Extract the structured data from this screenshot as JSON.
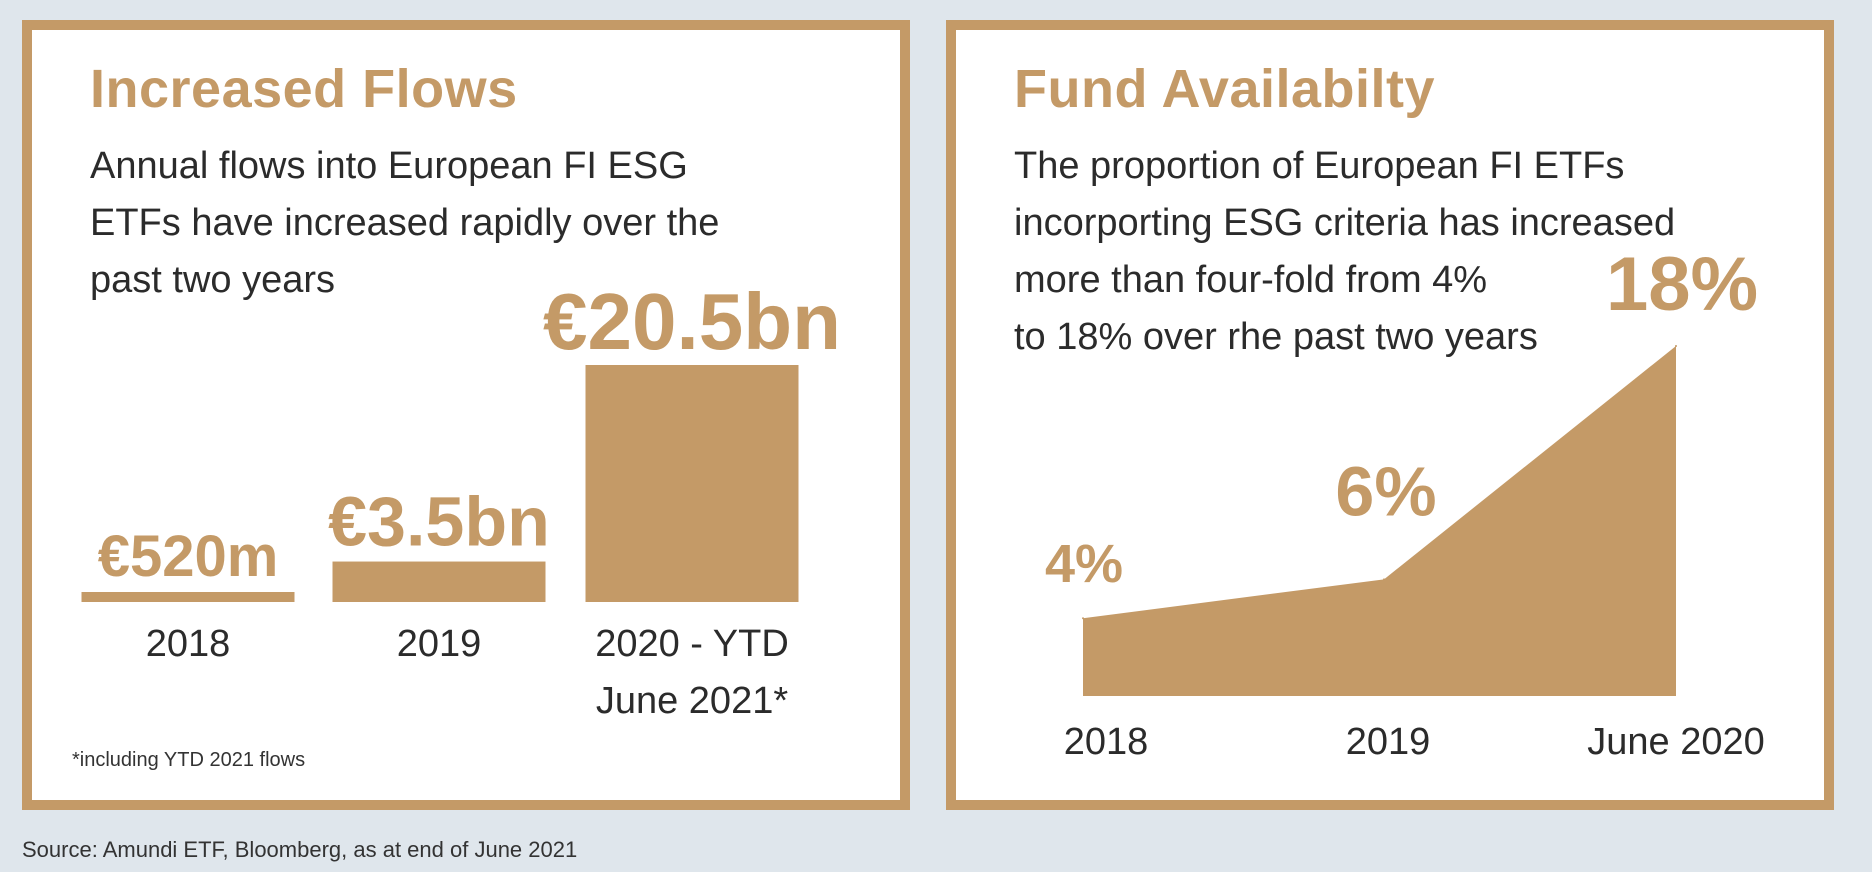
{
  "colors": {
    "accent": "#c49a67",
    "text": "#2b2b2b",
    "background": "#dfe6ec",
    "panel": "#ffffff"
  },
  "left_panel": {
    "title": "Increased Flows",
    "description_lines": [
      "Annual flows into European FI ESG",
      "ETFs have increased rapidly over the",
      "past two years"
    ],
    "footnote": "*including YTD 2021 flows"
  },
  "right_panel": {
    "title": "Fund Availabilty",
    "description_lines": [
      "The proportion of European FI ETFs",
      "incorporting ESG criteria has increased",
      "more than four-fold from 4%",
      "to 18% over rhe past two years"
    ]
  },
  "source": "Source: Amundi ETF, Bloomberg, as at end of June 2021",
  "chart_data": [
    {
      "type": "bar",
      "title": "Increased Flows",
      "unit": "€bn",
      "categories": [
        [
          "2018"
        ],
        [
          "2019"
        ],
        [
          "2020 - YTD",
          "June 2021*"
        ]
      ],
      "values": [
        0.52,
        3.5,
        20.5
      ],
      "data_labels": [
        "€520m",
        "€3.5bn",
        "€20.5bn"
      ],
      "ylim": [
        0,
        20.5
      ]
    },
    {
      "type": "area",
      "title": "Fund Availabilty",
      "unit": "%",
      "x": [
        "2018",
        "2019",
        "June 2020"
      ],
      "values": [
        4,
        6,
        18
      ],
      "data_labels": [
        "4%",
        "6%",
        "18%"
      ],
      "ylim": [
        0,
        18
      ]
    }
  ]
}
